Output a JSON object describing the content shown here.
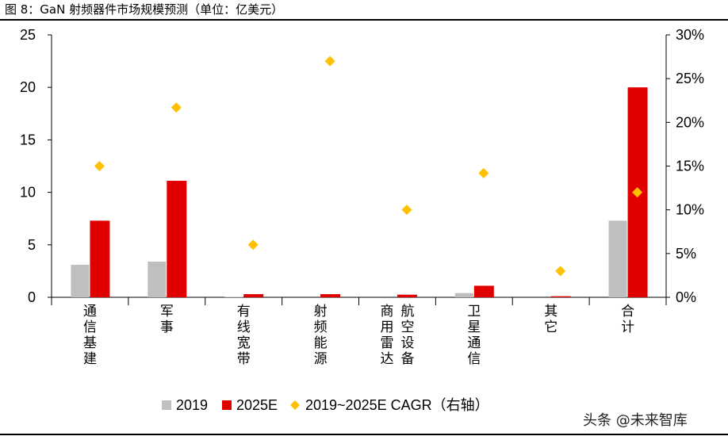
{
  "figure_title": "图 8：GaN 射频器件市场规模预测（单位：亿美元）",
  "watermark": "头条 @未来智库",
  "colors": {
    "s2019": "#bfbfbf",
    "s2025": "#e00000",
    "cagr": "#ffc000"
  },
  "chart_data": {
    "type": "bar",
    "title": "图 8：GaN 射频器件市场规模预测（单位：亿美元）",
    "categories": [
      "通信基建",
      "军事",
      "有线宽带",
      "射频能源",
      "商用雷达\n航空设备",
      "卫星通信",
      "其它",
      "合计"
    ],
    "series": [
      {
        "name": "2019",
        "type": "bar",
        "axis": "left",
        "values": [
          3.1,
          3.4,
          0.05,
          0.0,
          0.0,
          0.4,
          0.0,
          7.3
        ]
      },
      {
        "name": "2025E",
        "type": "bar",
        "axis": "left",
        "values": [
          7.3,
          11.1,
          0.3,
          0.3,
          0.25,
          1.1,
          0.1,
          20.0
        ]
      },
      {
        "name": "2019~2025E CAGR（右轴）",
        "type": "scatter",
        "axis": "right",
        "values": [
          15.0,
          21.7,
          6.0,
          27.0,
          10.0,
          14.2,
          3.0,
          12.0
        ]
      }
    ],
    "y_left": {
      "ylim": [
        0,
        25
      ],
      "ticks": [
        "0",
        "5",
        "10",
        "15",
        "20",
        "25"
      ]
    },
    "y_right": {
      "ylim": [
        0,
        30
      ],
      "ticks": [
        "0%",
        "5%",
        "10%",
        "15%",
        "20%",
        "25%",
        "30%"
      ]
    },
    "legend": {
      "position": "bottom",
      "items": [
        "2019",
        "2025E",
        "2019~2025E CAGR（右轴）"
      ]
    }
  }
}
